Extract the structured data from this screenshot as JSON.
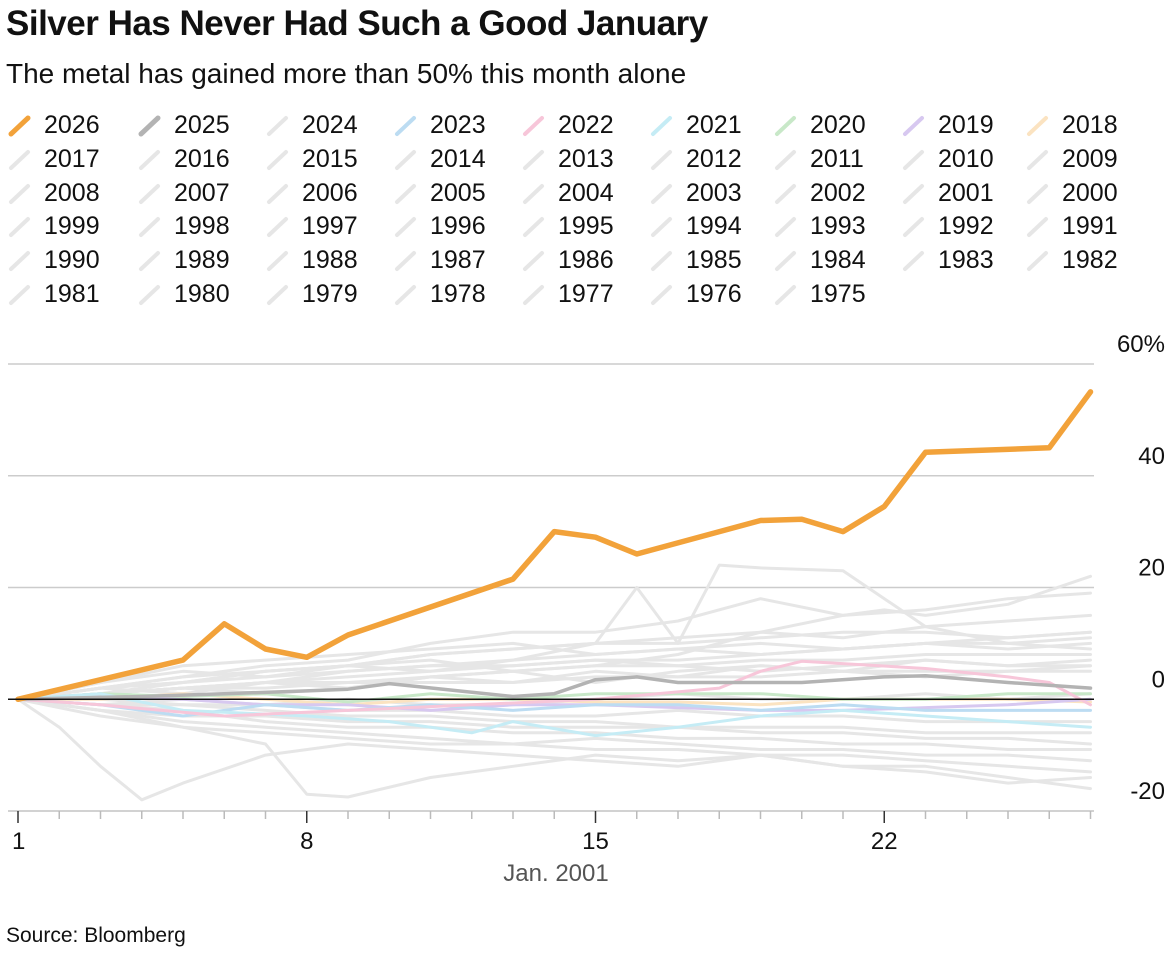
{
  "header": {
    "title": "Silver Has Never Had Such a Good January",
    "subtitle": "The metal has gained more than 50% this month alone"
  },
  "footer": {
    "source": "Source: Bloomberg"
  },
  "colors": {
    "2026": "#f2a23a",
    "2025": "#b3b3b3",
    "2023": "#bcdcf2",
    "2022": "#f7c6d9",
    "2021": "#c5ecf5",
    "2020": "#c8e8c8",
    "2019": "#d7c8f0",
    "2018": "#fbe3c1",
    "other": "#e6e6e6",
    "axis": "#111111",
    "grid": "#cccccc"
  },
  "chart_data": {
    "type": "line",
    "title": "Silver Has Never Had Such a Good January",
    "subtitle": "The metal has gained more than 50% this month alone",
    "xlabel": "Jan. 2001",
    "ylabel": "",
    "x_ticks": [
      1,
      8,
      15,
      22
    ],
    "x_range": [
      1,
      27
    ],
    "y_ticks": [
      60,
      40,
      20,
      0,
      -20
    ],
    "y_tick_labels": [
      "60%",
      "40",
      "20",
      "0",
      "-20"
    ],
    "ylim": [
      -20,
      60
    ],
    "grid": true,
    "legend_position": "top",
    "legend": [
      "2026",
      "2025",
      "2024",
      "2023",
      "2022",
      "2021",
      "2020",
      "2019",
      "2018",
      "2017",
      "2016",
      "2015",
      "2014",
      "2013",
      "2012",
      "2011",
      "2010",
      "2009",
      "2008",
      "2007",
      "2006",
      "2005",
      "2004",
      "2003",
      "2002",
      "2001",
      "2000",
      "1999",
      "1998",
      "1997",
      "1996",
      "1995",
      "1994",
      "1993",
      "1992",
      "1991",
      "1990",
      "1989",
      "1988",
      "1987",
      "1986",
      "1985",
      "1984",
      "1983",
      "1982",
      "1981",
      "1980",
      "1979",
      "1978",
      "1977",
      "1976",
      "1975"
    ],
    "series": [
      {
        "name": "2026",
        "x": [
          1,
          5,
          6,
          7,
          8,
          9,
          13,
          14,
          15,
          16,
          19,
          20,
          21,
          22,
          23,
          26,
          27
        ],
        "values": [
          0,
          7,
          13.5,
          9,
          7.5,
          11.5,
          21.5,
          30,
          29,
          26,
          32,
          32.2,
          30,
          34.5,
          44.2,
          45,
          55
        ]
      },
      {
        "name": "2025",
        "x": [
          1,
          4,
          6,
          8,
          9,
          10,
          13,
          14,
          15,
          16,
          17,
          20,
          22,
          23,
          25,
          27
        ],
        "values": [
          0,
          0.5,
          1,
          1.5,
          1.8,
          2.8,
          0.5,
          1,
          3.5,
          4,
          3,
          3,
          4,
          4.2,
          3,
          2
        ]
      },
      {
        "name": "2022",
        "x": [
          1,
          3,
          6,
          9,
          12,
          15,
          18,
          19,
          20,
          23,
          25,
          26,
          27
        ],
        "values": [
          0,
          -1,
          -3,
          -2,
          -1,
          0,
          2,
          5,
          6.8,
          5.5,
          4,
          3,
          -1
        ]
      },
      {
        "name": "2021",
        "x": [
          1,
          3,
          5,
          8,
          10,
          12,
          13,
          15,
          17,
          19,
          21,
          23,
          25,
          27
        ],
        "values": [
          0,
          1,
          -2,
          -3,
          -4,
          -6,
          -4,
          -6.5,
          -5,
          -3,
          -2,
          -3,
          -4,
          -5
        ]
      },
      {
        "name": "2023",
        "x": [
          1,
          3,
          5,
          7,
          9,
          11,
          13,
          15,
          17,
          19,
          21,
          23,
          25,
          27
        ],
        "values": [
          0,
          -1,
          -3,
          -1,
          -2,
          -1,
          -2,
          -1,
          -1,
          -2,
          -1,
          -2,
          -2,
          -2
        ]
      },
      {
        "name": "2020",
        "x": [
          1,
          3,
          5,
          7,
          9,
          11,
          13,
          15,
          17,
          19,
          21,
          23,
          25,
          27
        ],
        "values": [
          0,
          1,
          0.5,
          1,
          -0.5,
          1,
          0,
          1,
          1,
          1,
          0,
          0,
          1,
          1
        ]
      },
      {
        "name": "2019",
        "x": [
          1,
          3,
          5,
          7,
          9,
          11,
          13,
          15,
          17,
          19,
          21,
          23,
          25,
          27
        ],
        "values": [
          0,
          0.5,
          0,
          -1,
          -1,
          -2,
          -1,
          -1,
          -1.5,
          -2,
          -2,
          -1.5,
          -1,
          0
        ]
      },
      {
        "name": "2018",
        "x": [
          1,
          3,
          5,
          7,
          9,
          11,
          13,
          15,
          17,
          19,
          21,
          23,
          25,
          27
        ],
        "values": [
          0,
          0,
          1,
          0,
          -1,
          0,
          0,
          -0.5,
          -0.5,
          -1,
          0,
          0,
          0,
          -0.5
        ]
      },
      {
        "name": "2011",
        "x": [
          1,
          3,
          5,
          7,
          9,
          11,
          13,
          15,
          17,
          19,
          21,
          22,
          23,
          25,
          27
        ],
        "values": [
          0,
          1,
          2,
          1,
          2,
          4,
          5,
          6,
          8,
          12,
          15,
          16,
          15,
          17,
          22
        ]
      },
      {
        "name": "2010",
        "x": [
          1,
          3,
          5,
          7,
          9,
          11,
          13,
          15,
          17,
          19,
          21,
          23,
          25,
          27
        ],
        "values": [
          0,
          2,
          3,
          5,
          6,
          8,
          9,
          10,
          11,
          12,
          11,
          13,
          14,
          15
        ]
      },
      {
        "name": "2007",
        "x": [
          1,
          3,
          5,
          7,
          9,
          11,
          13,
          15,
          16,
          17,
          18,
          19,
          21,
          23,
          25,
          27
        ],
        "values": [
          0,
          1,
          2,
          3,
          5,
          6,
          7,
          10,
          20,
          10,
          24,
          23.5,
          23,
          13,
          10,
          9
        ]
      },
      {
        "name": "1983",
        "x": [
          1,
          3,
          5,
          7,
          9,
          11,
          13,
          15,
          17,
          19,
          21,
          23,
          25,
          27
        ],
        "values": [
          0,
          2,
          4,
          6,
          7,
          10,
          12,
          12,
          14,
          18,
          15,
          16,
          18,
          19
        ]
      },
      {
        "name": "1980",
        "x": [
          1,
          2,
          3,
          4,
          5,
          7,
          9,
          11,
          13,
          15,
          17,
          19,
          21,
          23,
          25,
          27
        ],
        "values": [
          0,
          -5,
          -12,
          -18,
          -15,
          -10,
          -8,
          -9,
          -10,
          -11,
          -12,
          -10,
          -12,
          -13,
          -15,
          -14
        ]
      },
      {
        "name": "1982",
        "x": [
          1,
          3,
          5,
          7,
          8,
          9,
          11,
          13,
          15,
          17,
          19,
          21,
          23,
          25,
          27
        ],
        "values": [
          0,
          -2,
          -5,
          -8,
          -17,
          -17.5,
          -14,
          -12,
          -10,
          -11,
          -10,
          -12,
          -12,
          -14,
          -16
        ]
      },
      {
        "name": "1979",
        "x": [
          1,
          3,
          5,
          7,
          9,
          11,
          13,
          15,
          17,
          19,
          21,
          23,
          25,
          27
        ],
        "values": [
          0,
          3,
          6,
          7,
          8,
          9,
          10,
          8,
          9,
          8,
          9,
          10,
          9,
          10
        ]
      },
      {
        "name": "1987",
        "x": [
          1,
          3,
          5,
          7,
          9,
          11,
          13,
          15,
          17,
          19,
          21,
          23,
          25,
          27
        ],
        "values": [
          0,
          1,
          2,
          3,
          3,
          4,
          5,
          6,
          6,
          7,
          7,
          8,
          8,
          8
        ]
      },
      {
        "name": "1990",
        "x": [
          1,
          3,
          5,
          7,
          9,
          11,
          13,
          15,
          17,
          19,
          21,
          23,
          25,
          27
        ],
        "values": [
          0,
          -2,
          -4,
          -5,
          -6,
          -7,
          -8,
          -9,
          -9,
          -10,
          -10,
          -11,
          -12,
          -13
        ]
      },
      {
        "name": "1997",
        "x": [
          1,
          3,
          5,
          7,
          9,
          11,
          13,
          15,
          17,
          19,
          21,
          23,
          25,
          27
        ],
        "values": [
          0,
          -3,
          -5,
          -6,
          -7,
          -8,
          -8,
          -7,
          -8,
          -9,
          -9,
          -10,
          -10,
          -11
        ]
      },
      {
        "name": "1985",
        "x": [
          1,
          3,
          5,
          7,
          9,
          11,
          13,
          15,
          17,
          19,
          21,
          23,
          25,
          27
        ],
        "values": [
          0,
          -1,
          -2,
          -4,
          -5,
          -5,
          -6,
          -6,
          -7,
          -7,
          -8,
          -8,
          -9,
          -9
        ]
      },
      {
        "name": "2013",
        "x": [
          1,
          3,
          5,
          7,
          9,
          11,
          13,
          15,
          17,
          19,
          21,
          23,
          25,
          27
        ],
        "values": [
          0,
          1,
          3,
          4,
          5,
          6,
          6,
          7,
          6,
          5,
          6,
          7,
          6,
          6
        ]
      },
      {
        "name": "2012",
        "x": [
          1,
          3,
          5,
          7,
          9,
          11,
          13,
          15,
          17,
          19,
          21,
          23,
          25,
          27
        ],
        "values": [
          0,
          2,
          4,
          5,
          6,
          8,
          9,
          10,
          10,
          11,
          12,
          12,
          11,
          12
        ]
      },
      {
        "name": "2006",
        "x": [
          1,
          3,
          5,
          7,
          9,
          11,
          13,
          15,
          17,
          19,
          21,
          23,
          25,
          27
        ],
        "values": [
          0,
          1,
          2,
          3,
          4,
          5,
          6,
          7,
          7,
          8,
          9,
          10,
          10,
          11
        ]
      },
      {
        "name": "1995",
        "x": [
          1,
          3,
          5,
          7,
          9,
          11,
          13,
          15,
          17,
          19,
          21,
          23,
          25,
          27
        ],
        "values": [
          0,
          -1,
          -1,
          -2,
          -3,
          -3,
          -4,
          -4,
          -5,
          -5,
          -5,
          -6,
          -6,
          -6
        ]
      },
      {
        "name": "2003",
        "x": [
          1,
          3,
          5,
          7,
          9,
          11,
          13,
          15,
          17,
          19,
          21,
          23,
          25,
          27
        ],
        "values": [
          0,
          0,
          -1,
          -1,
          -2,
          -2,
          -3,
          -3,
          -2,
          -3,
          -3,
          -4,
          -4,
          -4
        ]
      },
      {
        "name": "2016",
        "x": [
          1,
          3,
          5,
          7,
          9,
          11,
          13,
          15,
          17,
          19,
          21,
          23,
          25,
          27
        ],
        "values": [
          0,
          1,
          2,
          2,
          3,
          3,
          3,
          4,
          4,
          4,
          5,
          5,
          5,
          5
        ]
      },
      {
        "name": "1993",
        "x": [
          1,
          3,
          5,
          7,
          9,
          11,
          13,
          15,
          17,
          19,
          21,
          23,
          25,
          27
        ],
        "values": [
          0,
          -1,
          0,
          -1,
          0,
          -1,
          -1,
          0,
          1,
          0,
          0,
          1,
          0,
          1
        ]
      },
      {
        "name": "1988",
        "x": [
          1,
          3,
          5,
          7,
          9,
          11,
          13,
          15,
          17,
          19,
          21,
          23,
          25,
          27
        ],
        "values": [
          0,
          2,
          1,
          3,
          2,
          4,
          3,
          5,
          4,
          6,
          5,
          7,
          6,
          7
        ]
      },
      {
        "name": "1976",
        "x": [
          1,
          3,
          5,
          7,
          9,
          11,
          13,
          15,
          17,
          19,
          21,
          23,
          25,
          27
        ],
        "values": [
          0,
          -2,
          -3,
          -3,
          -4,
          -4,
          -5,
          -5,
          -5,
          -6,
          -6,
          -7,
          -7,
          -8
        ]
      },
      {
        "name": "1996",
        "x": [
          1,
          3,
          5,
          7,
          9,
          11,
          13,
          15,
          17,
          19,
          21,
          23,
          25,
          27
        ],
        "values": [
          0,
          3,
          5,
          4,
          6,
          7,
          5,
          3,
          5,
          6,
          5,
          4,
          5,
          6
        ]
      },
      {
        "name": "2009",
        "x": [
          1,
          3,
          5,
          7,
          9,
          11,
          13,
          15,
          17,
          19,
          21,
          23,
          25,
          27
        ],
        "values": [
          0,
          2,
          3,
          5,
          6,
          5,
          7,
          8,
          9,
          10,
          9,
          10,
          11,
          12
        ]
      }
    ]
  }
}
